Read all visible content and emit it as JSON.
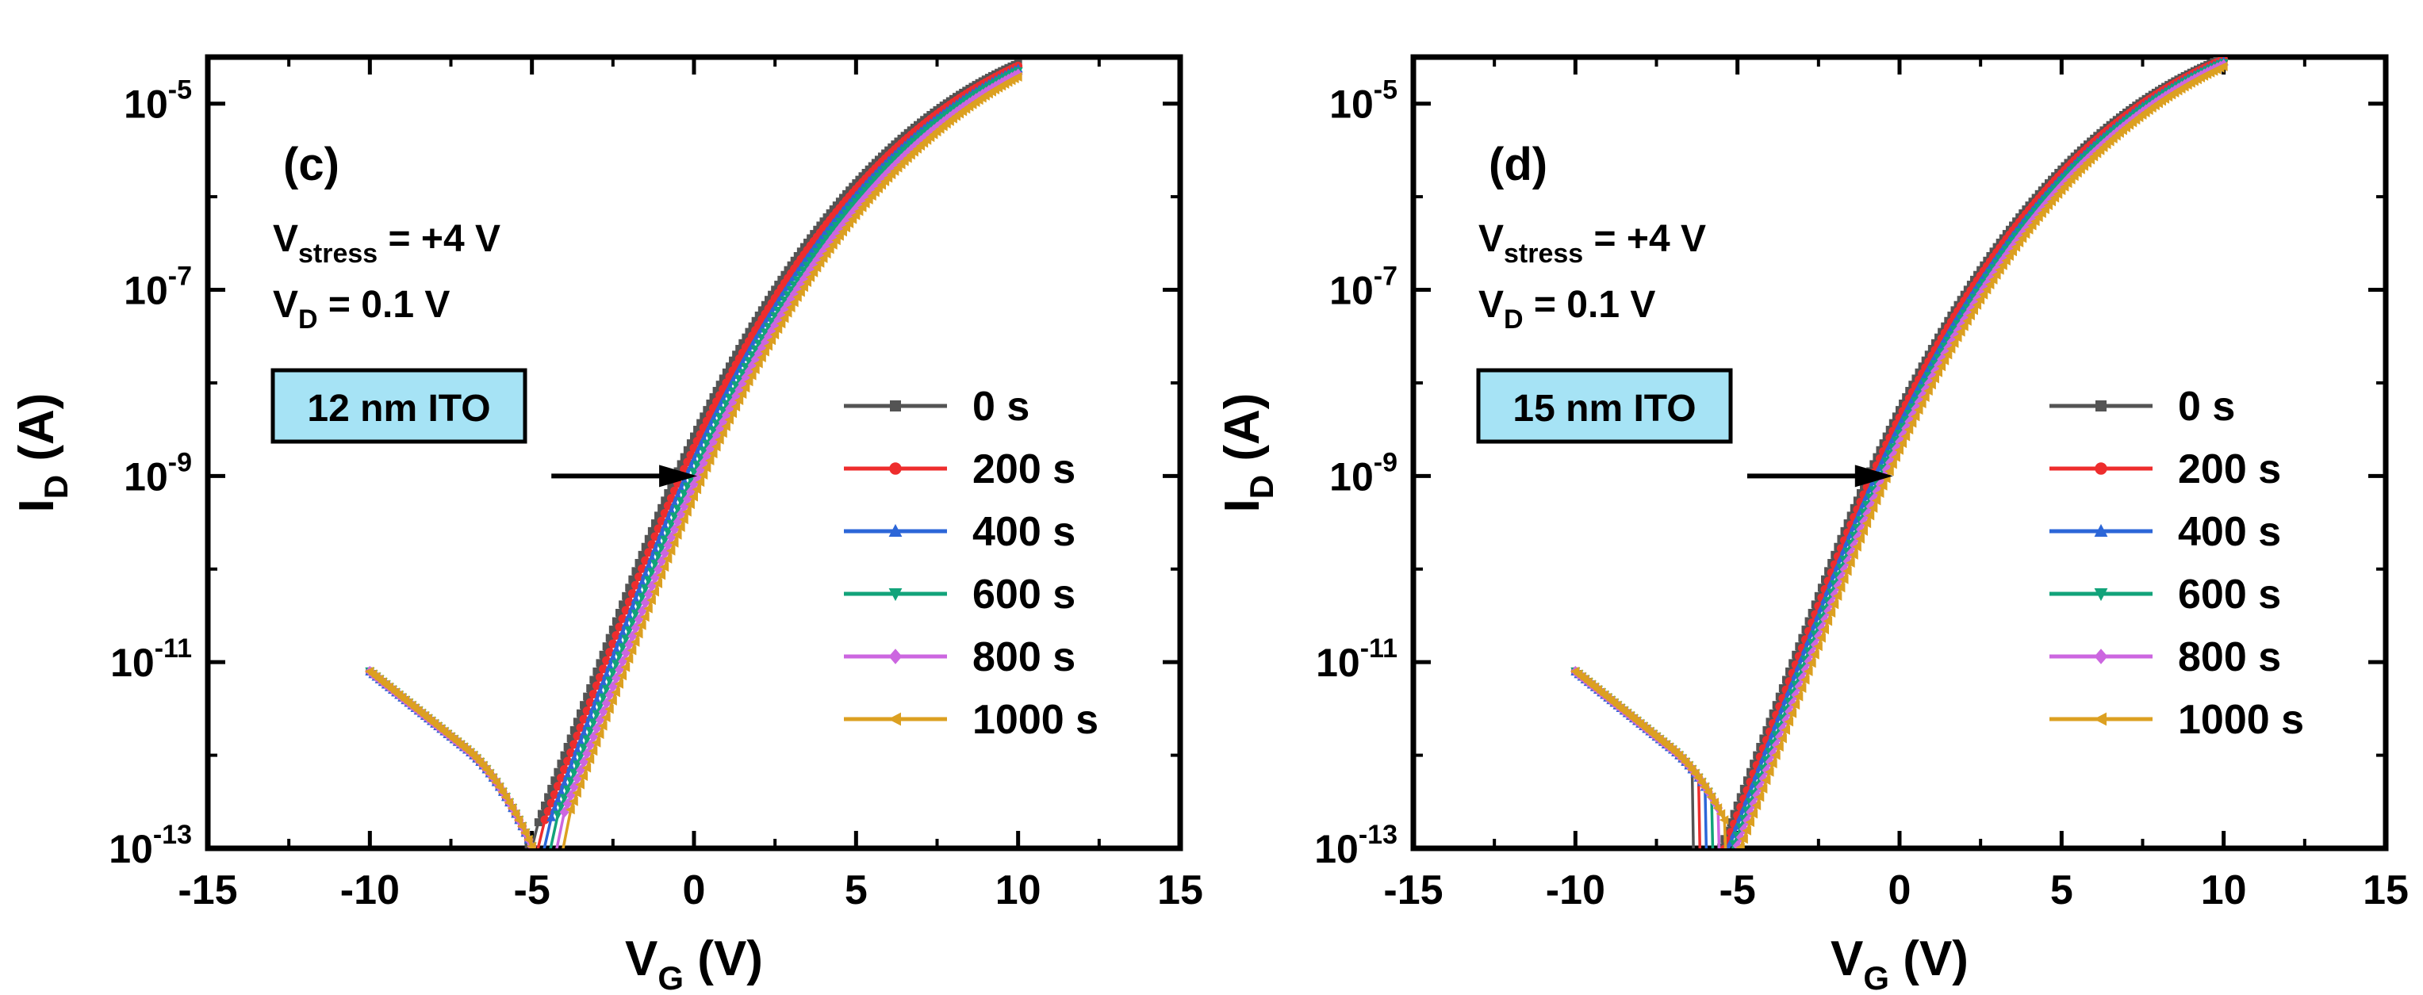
{
  "figure": {
    "panels_description": "Two transfer-curve panels under positive bias stress"
  },
  "chart_data": [
    {
      "type": "line",
      "panel_label": "(c)",
      "conditions": {
        "vstress_main": "V",
        "vstress_sub": "stress",
        "vstress_value": "= +4 V",
        "vd_main": "V",
        "vd_sub": "D",
        "vd_value": "= 0.1 V"
      },
      "box_label": "12 nm ITO",
      "box_color": "#a6e3f5",
      "xlabel": {
        "main": "V",
        "sub": "G",
        "unit": " (V)"
      },
      "ylabel": {
        "main": "I",
        "sub": "D",
        "unit": " (A)"
      },
      "xlim": [
        -15,
        15
      ],
      "xticks": [
        -15,
        -10,
        -5,
        0,
        5,
        10,
        15
      ],
      "xtick_labels": [
        "-15",
        "-10",
        "-5",
        "0",
        "5",
        "10",
        "15"
      ],
      "ylim_log10": [
        -13,
        -4.5
      ],
      "yticks_exp": [
        -13,
        -11,
        -9,
        -7,
        -5
      ],
      "ytick_base": "10",
      "ytick_exp_labels": [
        "-13",
        "-11",
        "-9",
        "-7",
        "-5"
      ],
      "arrow": {
        "from_x": -4.4,
        "to_x": 0.1,
        "log10_y": -9
      },
      "model": {
        "vmin": -6.6,
        "vt0": -2.0,
        "vt_step": 0.17,
        "dip_x0": -5.2
      },
      "series": [
        {
          "name": "0 s",
          "color": "#545454",
          "marker": "square"
        },
        {
          "name": "200 s",
          "color": "#ee2d2d",
          "marker": "circle"
        },
        {
          "name": "400 s",
          "color": "#2c66d8",
          "marker": "triangle-up"
        },
        {
          "name": "600 s",
          "color": "#12a37a",
          "marker": "triangle-down"
        },
        {
          "name": "800 s",
          "color": "#cc66e0",
          "marker": "diamond"
        },
        {
          "name": "1000 s",
          "color": "#dca021",
          "marker": "triangle-left"
        }
      ]
    },
    {
      "type": "line",
      "panel_label": "(d)",
      "conditions": {
        "vstress_main": "V",
        "vstress_sub": "stress",
        "vstress_value": "= +4 V",
        "vd_main": "V",
        "vd_sub": "D",
        "vd_value": "= 0.1 V"
      },
      "box_label": "15 nm ITO",
      "box_color": "#a6e3f5",
      "xlabel": {
        "main": "V",
        "sub": "G",
        "unit": " (V)"
      },
      "ylabel": {
        "main": "I",
        "sub": "D",
        "unit": " (A)"
      },
      "xlim": [
        -15,
        15
      ],
      "xticks": [
        -15,
        -10,
        -5,
        0,
        5,
        10,
        15
      ],
      "xtick_labels": [
        "-15",
        "-10",
        "-5",
        "0",
        "5",
        "10",
        "15"
      ],
      "ylim_log10": [
        -13,
        -4.5
      ],
      "yticks_exp": [
        -13,
        -11,
        -9,
        -7,
        -5
      ],
      "ytick_base": "10",
      "ytick_exp_labels": [
        "-13",
        "-11",
        "-9",
        "-7",
        "-5"
      ],
      "arrow": {
        "from_x": -4.7,
        "to_x": -0.2,
        "log10_y": -9
      },
      "model": {
        "vmin": -6.4,
        "vt0": -2.4,
        "vt_step": 0.12,
        "dip_x0": -6.4
      },
      "series": [
        {
          "name": "0 s",
          "color": "#545454",
          "marker": "square"
        },
        {
          "name": "200 s",
          "color": "#ee2d2d",
          "marker": "circle"
        },
        {
          "name": "400 s",
          "color": "#2c66d8",
          "marker": "triangle-up"
        },
        {
          "name": "600 s",
          "color": "#12a37a",
          "marker": "triangle-down"
        },
        {
          "name": "800 s",
          "color": "#cc66e0",
          "marker": "diamond"
        },
        {
          "name": "1000 s",
          "color": "#dca021",
          "marker": "triangle-left"
        }
      ]
    }
  ]
}
